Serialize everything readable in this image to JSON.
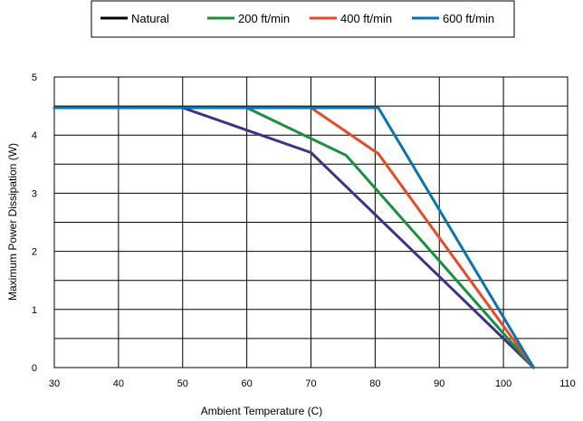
{
  "chart_data": {
    "type": "line",
    "title": "",
    "xlabel": "Ambient Temperature (C)",
    "ylabel": "Maximum Power Dissipation (W)",
    "xlim": [
      30,
      110
    ],
    "ylim": [
      0,
      5
    ],
    "x_ticks": [
      "30",
      "40",
      "50",
      "60",
      "70",
      "80",
      "90",
      "100",
      "110"
    ],
    "y_ticks": [
      "0",
      "1",
      "2",
      "3",
      "4",
      "5"
    ],
    "grid": true,
    "legend_position": "top-center",
    "series": [
      {
        "name": "Natural",
        "color": "#3a3488",
        "legend_color": "#000000",
        "points": [
          [
            30,
            4.47
          ],
          [
            50,
            4.47
          ],
          [
            70,
            3.7
          ],
          [
            104.7,
            0
          ]
        ]
      },
      {
        "name": "200 ft/min",
        "color": "#17913e",
        "legend_color": "#17913e",
        "points": [
          [
            30,
            4.47
          ],
          [
            60,
            4.47
          ],
          [
            75.5,
            3.65
          ],
          [
            104.7,
            0
          ]
        ]
      },
      {
        "name": "400 ft/min",
        "color": "#e84a23",
        "legend_color": "#e84a23",
        "points": [
          [
            30,
            4.47
          ],
          [
            70,
            4.47
          ],
          [
            80.5,
            3.68
          ],
          [
            104.7,
            0
          ]
        ]
      },
      {
        "name": "600 ft/min",
        "color": "#0a73b6",
        "legend_color": "#0a73b6",
        "points": [
          [
            30,
            4.47
          ],
          [
            80.5,
            4.47
          ],
          [
            104.7,
            0
          ]
        ]
      }
    ]
  }
}
